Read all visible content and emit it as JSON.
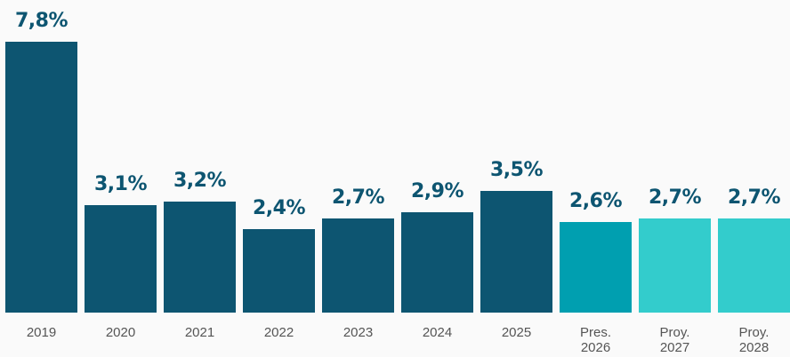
{
  "chart_data": {
    "type": "bar",
    "categories": [
      "2019",
      "2020",
      "2021",
      "2022",
      "2023",
      "2024",
      "2025",
      "Pres. 2026",
      "Proy. 2027",
      "Proy. 2028"
    ],
    "values": [
      7.8,
      3.1,
      3.2,
      2.4,
      2.7,
      2.9,
      3.5,
      2.6,
      2.7,
      2.7
    ],
    "value_labels": [
      "7,8%",
      "3,1%",
      "3,2%",
      "2,4%",
      "2,7%",
      "2,9%",
      "3,5%",
      "2,6%",
      "2,7%",
      "2,7%"
    ],
    "colors": [
      "#0d5571",
      "#0d5571",
      "#0d5571",
      "#0d5571",
      "#0d5571",
      "#0d5571",
      "#0d5571",
      "#009fb0",
      "#33cccc",
      "#33cccc"
    ]
  }
}
